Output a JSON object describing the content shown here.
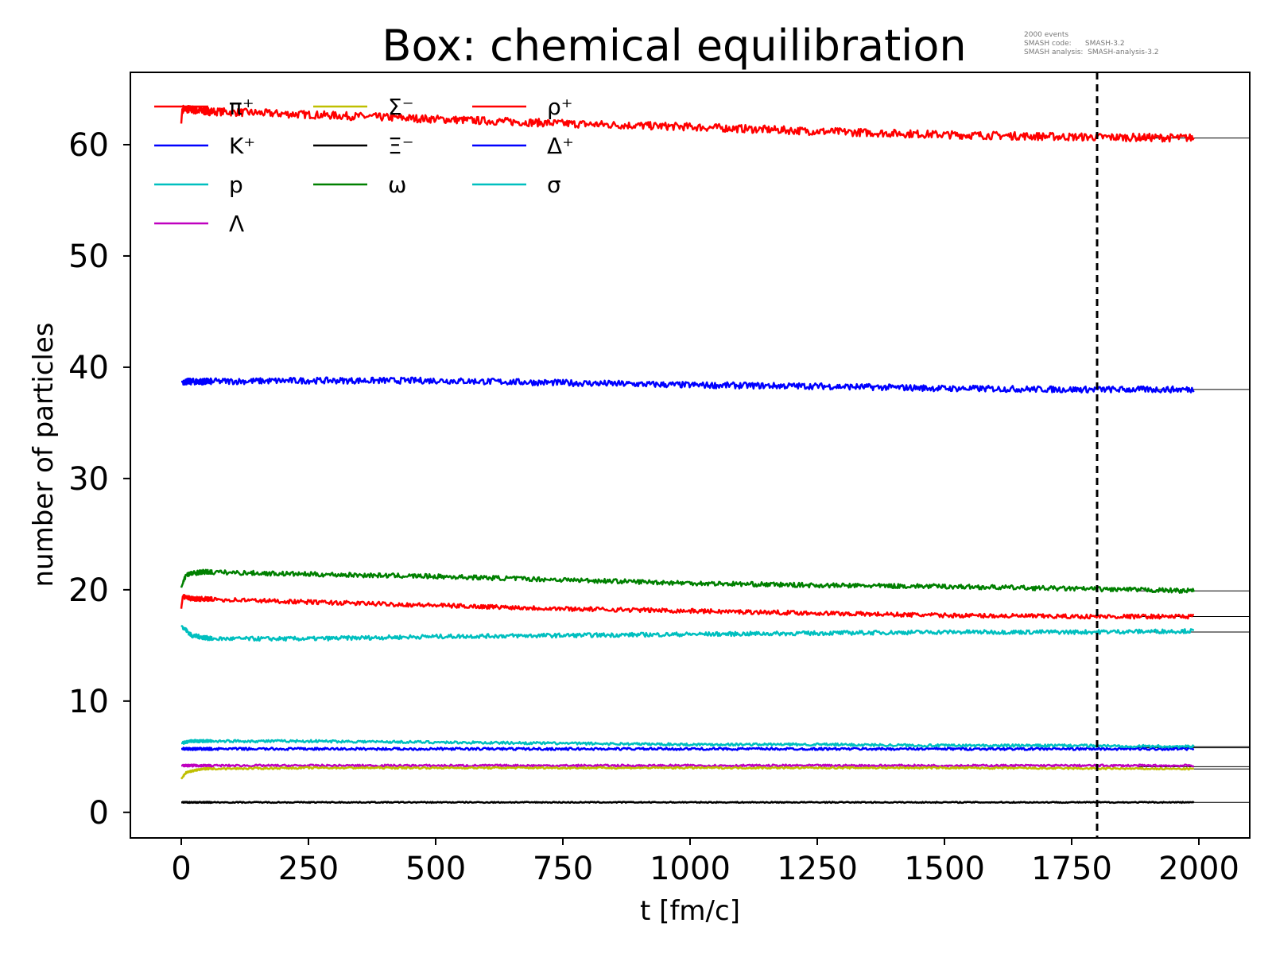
{
  "chart_data": {
    "type": "line",
    "title": "Box: chemical equilibration",
    "xlabel": "t [fm/c]",
    "ylabel": "number of particles",
    "xlim": [
      -100,
      2100
    ],
    "ylim": [
      -2.3,
      66.5
    ],
    "xticks": [
      0,
      250,
      500,
      750,
      1000,
      1250,
      1500,
      1750,
      2000
    ],
    "yticks": [
      0,
      10,
      20,
      30,
      40,
      50,
      60
    ],
    "grid": false,
    "legend_position": "top-left",
    "legend_columns": 3,
    "reference_line_x": 1800,
    "meta": [
      "2000 events",
      "SMASH code:      SMASH-3.2",
      "SMASH analysis:  SMASH-analysis-3.2"
    ],
    "series": [
      {
        "name": "π⁺",
        "color": "#ff0000",
        "t": [
          0,
          2,
          10,
          50,
          250,
          500,
          750,
          1000,
          1250,
          1500,
          1750,
          2000
        ],
        "values": [
          61.9,
          63.2,
          63.2,
          63.0,
          62.7,
          62.3,
          61.9,
          61.6,
          61.2,
          60.9,
          60.7,
          60.6
        ],
        "equilibrium": 60.6
      },
      {
        "name": "K⁺",
        "color": "#0000ff",
        "t": [
          0,
          250,
          500,
          750,
          1000,
          1250,
          1500,
          1750,
          2000
        ],
        "values": [
          38.7,
          38.8,
          38.8,
          38.6,
          38.4,
          38.3,
          38.1,
          38.0,
          38.0
        ],
        "equilibrium": 38.0
      },
      {
        "name": "p",
        "color": "#00bfbf",
        "t": [
          0,
          20,
          60,
          250,
          500,
          750,
          1000,
          1250,
          1500,
          1750,
          2000
        ],
        "values": [
          16.8,
          15.9,
          15.6,
          15.6,
          15.8,
          15.9,
          16.0,
          16.1,
          16.2,
          16.2,
          16.3
        ],
        "equilibrium": 16.2
      },
      {
        "name": "Λ",
        "color": "#bf00bf",
        "t": [
          0,
          500,
          1000,
          1500,
          2000
        ],
        "values": [
          4.2,
          4.2,
          4.2,
          4.2,
          4.2
        ],
        "equilibrium": 4.1
      },
      {
        "name": "Σ⁻",
        "color": "#bfbf00",
        "t": [
          0,
          10,
          40,
          250,
          500,
          1000,
          1500,
          2000
        ],
        "values": [
          3.0,
          3.6,
          3.9,
          4.0,
          4.0,
          4.0,
          4.0,
          3.9
        ],
        "equilibrium": 3.9
      },
      {
        "name": "Ξ⁻",
        "color": "#000000",
        "t": [
          0,
          500,
          1000,
          1500,
          2000
        ],
        "values": [
          0.9,
          0.9,
          0.9,
          0.9,
          0.9
        ],
        "equilibrium": 0.9
      },
      {
        "name": "ω",
        "color": "#008000",
        "t": [
          0,
          10,
          40,
          250,
          500,
          750,
          1000,
          1250,
          1500,
          1750,
          2000
        ],
        "values": [
          20.2,
          21.4,
          21.6,
          21.4,
          21.2,
          20.9,
          20.6,
          20.4,
          20.3,
          20.1,
          19.9
        ],
        "equilibrium": 19.9
      },
      {
        "name": "ρ⁺",
        "color": "#ff0000",
        "t": [
          0,
          3,
          20,
          250,
          500,
          750,
          1000,
          1250,
          1500,
          1750,
          2000
        ],
        "values": [
          18.3,
          19.4,
          19.2,
          18.9,
          18.6,
          18.3,
          18.1,
          17.9,
          17.7,
          17.6,
          17.6
        ],
        "equilibrium": 17.6
      },
      {
        "name": "Δ⁺",
        "color": "#0000ff",
        "t": [
          0,
          250,
          500,
          750,
          1000,
          1250,
          1500,
          1750,
          2000
        ],
        "values": [
          5.7,
          5.7,
          5.7,
          5.7,
          5.7,
          5.7,
          5.7,
          5.7,
          5.7
        ],
        "equilibrium": 5.8
      },
      {
        "name": "σ",
        "color": "#00bfbf",
        "t": [
          0,
          20,
          250,
          500,
          750,
          1000,
          1250,
          1500,
          1750,
          2000
        ],
        "values": [
          6.2,
          6.4,
          6.4,
          6.3,
          6.2,
          6.1,
          6.1,
          6.0,
          6.0,
          5.9
        ],
        "equilibrium": 5.9
      }
    ]
  }
}
